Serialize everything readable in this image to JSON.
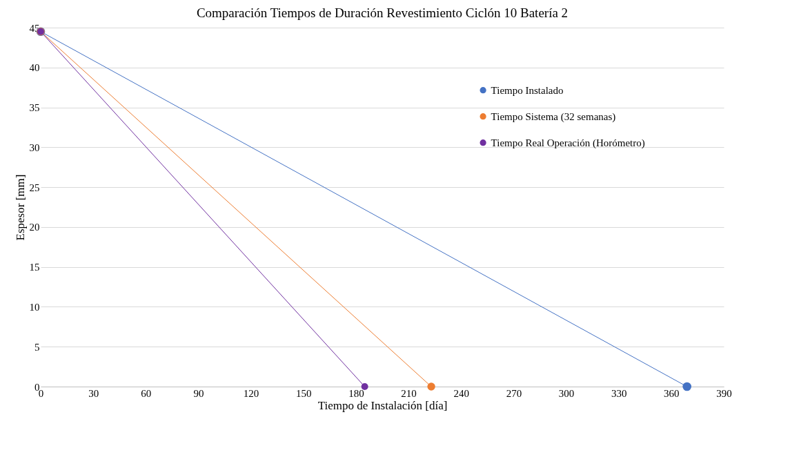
{
  "chart_data": {
    "type": "line",
    "title": "Comparación Tiempos de Duración Revestimiento Ciclón 10 Batería 2",
    "xlabel": "Tiempo de Instalación [día]",
    "ylabel": "Espesor [mm]",
    "series": [
      {
        "name": "Tiempo Instalado",
        "color": "#4472c4",
        "x": [
          0,
          369
        ],
        "values": [
          44.5,
          0
        ]
      },
      {
        "name": "Tiempo Sistema (32 semanas)",
        "color": "#ed7d31",
        "x": [
          0,
          223
        ],
        "values": [
          44.5,
          0
        ]
      },
      {
        "name": "Tiempo Real Operación (Horómetro)",
        "color": "#7030a0",
        "x": [
          0,
          185
        ],
        "values": [
          44.5,
          0
        ]
      }
    ],
    "xlim": [
      0,
      390
    ],
    "xticks": [
      0,
      30,
      60,
      90,
      120,
      150,
      180,
      210,
      240,
      270,
      300,
      330,
      360,
      390
    ],
    "ylim": [
      0,
      45
    ],
    "yticks": [
      0,
      5,
      10,
      15,
      20,
      25,
      30,
      35,
      40,
      45
    ],
    "grid": "y",
    "legend": "right",
    "marker": "circle",
    "line_style": "solid"
  }
}
